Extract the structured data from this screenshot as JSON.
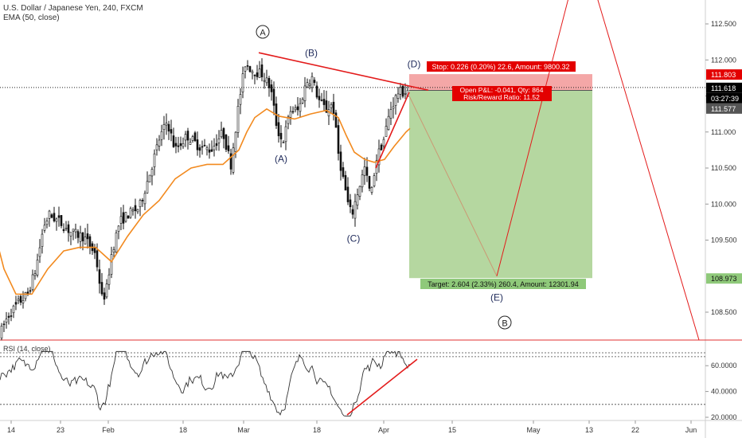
{
  "header": {
    "symbol": "U.S. Dollar / Japanese Yen, 240, FXCM",
    "ema": "EMA (50, close)",
    "rsi": "RSI (14, close)"
  },
  "colors": {
    "candle": "#111111",
    "ema": "#f28a1f",
    "trend": "#e31b1b",
    "stop_fill": "#f4a7a7",
    "target_fill": "#b5d7a0",
    "label_red": "#e30000",
    "label_green": "#8fc97a",
    "price_tag": "#000000"
  },
  "chart_data": {
    "type": "candlestick",
    "title": "U.S. Dollar / Japanese Yen, 240, FXCM",
    "x_axis": {
      "ticks": [
        "14",
        "23",
        "Feb",
        "18",
        "Mar",
        "18",
        "Apr",
        "15",
        "May",
        "13",
        "22",
        "Jun"
      ]
    },
    "y_axis": {
      "range": [
        108.2,
        112.75
      ],
      "ticks": [
        "112.500",
        "112.000",
        "111.500",
        "111.000",
        "110.500",
        "110.000",
        "109.500",
        "109.000",
        "108.500"
      ],
      "price_tags": [
        {
          "label": "111.803",
          "value": 111.803,
          "style": "red"
        },
        {
          "label": "111.618",
          "value": 111.618,
          "style": "black"
        },
        {
          "label": "03:27:39",
          "value": 111.53,
          "style": "black"
        },
        {
          "label": "111.577",
          "value": 111.577,
          "style": "gray"
        },
        {
          "label": "108.973",
          "value": 108.973,
          "style": "green"
        }
      ]
    },
    "series": [
      {
        "name": "EMA (50, close)",
        "points": [
          [
            -2,
            109.4
          ],
          [
            5,
            109.1
          ],
          [
            20,
            108.75
          ],
          [
            40,
            108.75
          ],
          [
            60,
            109.1
          ],
          [
            80,
            109.35
          ],
          [
            100,
            109.4
          ],
          [
            120,
            109.4
          ],
          [
            140,
            109.2
          ],
          [
            160,
            109.55
          ],
          [
            180,
            109.85
          ],
          [
            200,
            110.05
          ],
          [
            220,
            110.35
          ],
          [
            240,
            110.5
          ],
          [
            260,
            110.55
          ],
          [
            280,
            110.55
          ],
          [
            300,
            110.75
          ],
          [
            310,
            111.0
          ],
          [
            320,
            111.2
          ],
          [
            335,
            111.32
          ],
          [
            350,
            111.22
          ],
          [
            370,
            111.18
          ],
          [
            390,
            111.25
          ],
          [
            410,
            111.3
          ],
          [
            425,
            111.2
          ],
          [
            435,
            110.95
          ],
          [
            445,
            110.72
          ],
          [
            458,
            110.62
          ],
          [
            470,
            110.58
          ],
          [
            483,
            110.62
          ],
          [
            495,
            110.8
          ],
          [
            510,
            111.0
          ],
          [
            515,
            111.05
          ]
        ]
      },
      {
        "name": "RSI (14, close)",
        "ylim": [
          20,
          72
        ],
        "ticks": [
          "60.0000",
          "40.0000",
          "20.0000"
        ]
      }
    ],
    "trade": {
      "stop_label": "Stop: 0.226 (0.20%) 22.6, Amount: 9800.32",
      "pnl_label": "Open P&L: -0.041, Qty: 864",
      "rr_label": "Risk/Reward Ratio: 11.52",
      "target_label": "Target: 2.604 (2.33%) 260.4, Amount: 12301.94",
      "entry": 111.577,
      "stop": 111.803,
      "target": 108.973
    },
    "annotations": {
      "waves": [
        {
          "label": "A",
          "circled": true
        },
        {
          "label": "(B)",
          "circled": false
        },
        {
          "label": "(D)",
          "circled": false
        },
        {
          "label": "(A)",
          "circled": false
        },
        {
          "label": "(C)",
          "circled": false
        },
        {
          "label": "(E)",
          "circled": false
        },
        {
          "label": "B",
          "circled": true
        }
      ]
    }
  }
}
